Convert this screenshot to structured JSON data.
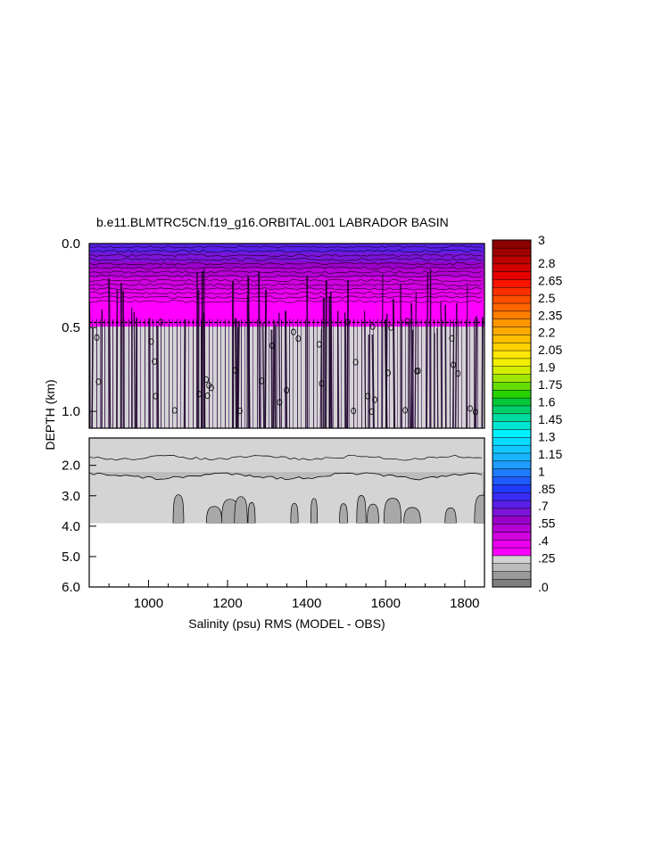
{
  "chart_data": {
    "type": "heatmap",
    "title": "b.e11.BLMTRC5CN.f19_g16.ORBITAL.001 LABRADOR BASIN",
    "xlabel": "Salinity (psu) RMS (MODEL - OBS)",
    "ylabel": "DEPTH (km)",
    "xlim": [
      850,
      1850
    ],
    "x_ticks": [
      "1000",
      "1200",
      "1400",
      "1600",
      "1800"
    ],
    "x_tick_values": [
      1000,
      1200,
      1400,
      1600,
      1800
    ],
    "upper_panel": {
      "ylim": [
        0.0,
        1.1
      ],
      "y_ticks": [
        "0.0",
        "0.5",
        "1.0"
      ],
      "y_tick_values": [
        0.0,
        0.5,
        1.0
      ]
    },
    "lower_panel": {
      "ylim": [
        1.1,
        6.0
      ],
      "y_ticks": [
        "2.0",
        "3.0",
        "4.0",
        "5.0",
        "6.0"
      ],
      "y_tick_values": [
        2.0,
        3.0,
        4.0,
        5.0,
        6.0
      ],
      "data_bottom_depth": 3.9
    },
    "field_profile": [
      {
        "depth": 0.0,
        "value": 0.75
      },
      {
        "depth": 0.1,
        "value": 0.62
      },
      {
        "depth": 0.2,
        "value": 0.48
      },
      {
        "depth": 0.35,
        "value": 0.32
      },
      {
        "depth": 0.5,
        "value": 0.27
      },
      {
        "depth": 1.1,
        "value": 0.26
      },
      {
        "depth": 2.0,
        "value": 0.24
      },
      {
        "depth": 2.4,
        "value": 0.18
      },
      {
        "depth": 3.0,
        "value": 0.12
      },
      {
        "depth": 3.9,
        "value": 0.1
      }
    ],
    "colorbar": {
      "min": 0.0,
      "max": 3.0,
      "labels": [
        "3",
        "2.8",
        "2.65",
        "2.5",
        "2.35",
        "2.2",
        "2.05",
        "1.9",
        "1.75",
        "1.6",
        "1.45",
        "1.3",
        "1.15",
        "1",
        ".85",
        ".7",
        ".55",
        ".4",
        ".25",
        ".0"
      ],
      "label_values": [
        3.0,
        2.8,
        2.65,
        2.5,
        2.35,
        2.2,
        2.05,
        1.9,
        1.75,
        1.6,
        1.45,
        1.3,
        1.15,
        1.0,
        0.85,
        0.7,
        0.55,
        0.4,
        0.25,
        0.0
      ],
      "colors": [
        "#7f7f7f",
        "#9a9a9a",
        "#bcbcbc",
        "#d4d4d4",
        "#ff00ff",
        "#ea00ee",
        "#d000e0",
        "#b400d4",
        "#9a00c8",
        "#7c14d8",
        "#5a20e8",
        "#3a2cf4",
        "#1e3cff",
        "#1e5cff",
        "#1e7cff",
        "#1e9cff",
        "#18b4ff",
        "#10c8ff",
        "#08dcff",
        "#00f0ff",
        "#00e6d2",
        "#00dca0",
        "#00d06c",
        "#00c838",
        "#28d200",
        "#64dc00",
        "#a0e600",
        "#d2f000",
        "#f0f000",
        "#ffe600",
        "#ffd200",
        "#ffbe00",
        "#ffaa00",
        "#ff9600",
        "#ff7e00",
        "#ff6600",
        "#ff4e00",
        "#ff3000",
        "#f81400",
        "#e60000",
        "#d20000",
        "#bc0000",
        "#a00000",
        "#8c0000"
      ]
    }
  }
}
